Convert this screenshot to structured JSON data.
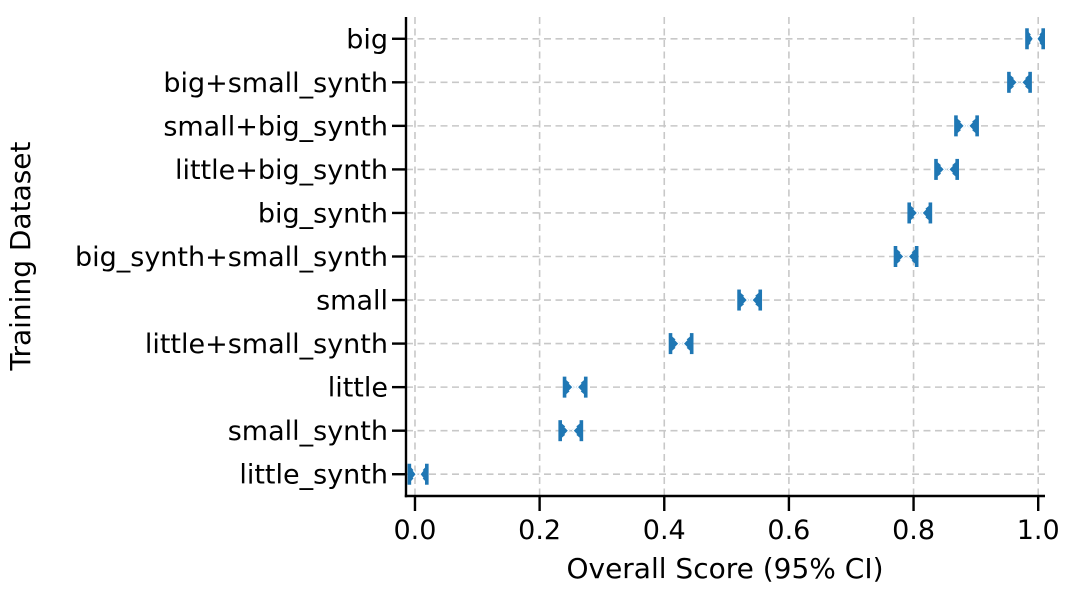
{
  "figure": {
    "background": "#ffffff"
  },
  "chart_data": {
    "type": "scatter",
    "subtype": "horizontal-point-plot-with-error-bars",
    "title": "",
    "xlabel": "Overall Score (95% CI)",
    "ylabel": "Training Dataset",
    "categories": [
      "big",
      "big+small_synth",
      "small+big_synth",
      "little+big_synth",
      "big_synth",
      "big_synth+small_synth",
      "small",
      "little+small_synth",
      "little",
      "small_synth",
      "little_synth"
    ],
    "series": [
      {
        "name": "Overall Score",
        "values": [
          0.995,
          0.97,
          0.885,
          0.853,
          0.81,
          0.788,
          0.537,
          0.427,
          0.257,
          0.25,
          0.005
        ],
        "ci_halfwidth": [
          0.013,
          0.017,
          0.017,
          0.017,
          0.017,
          0.017,
          0.017,
          0.017,
          0.017,
          0.017,
          0.014
        ]
      }
    ],
    "xlim": [
      -0.0144,
      1.0109
    ],
    "xticks": [
      0.0,
      0.2,
      0.4,
      0.6,
      0.8,
      1.0
    ],
    "xtick_labels": [
      "0.0",
      "0.2",
      "0.4",
      "0.6",
      "0.8",
      "1.0"
    ],
    "grid": true,
    "grid_axis": "both",
    "grid_style": "dashed",
    "legend": false,
    "marker_style": "bowtie-error-bar",
    "marker_color": "#1f77b4",
    "grid_color": "#c8c8c8",
    "axis_color": "#000000",
    "text_color": "#000000"
  }
}
